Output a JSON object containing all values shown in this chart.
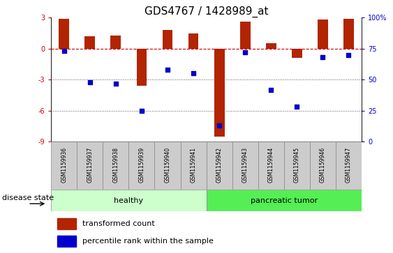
{
  "title": "GDS4767 / 1428989_at",
  "samples": [
    "GSM1159936",
    "GSM1159937",
    "GSM1159938",
    "GSM1159939",
    "GSM1159940",
    "GSM1159941",
    "GSM1159942",
    "GSM1159943",
    "GSM1159944",
    "GSM1159945",
    "GSM1159946",
    "GSM1159947"
  ],
  "transformed_count": [
    2.9,
    1.2,
    1.3,
    -3.6,
    1.8,
    1.5,
    -8.5,
    2.6,
    0.5,
    -0.9,
    2.8,
    2.9
  ],
  "percentile_rank": [
    73,
    48,
    47,
    25,
    58,
    55,
    13,
    72,
    42,
    28,
    68,
    70
  ],
  "ylim": [
    -9,
    3
  ],
  "yticks_left": [
    -9,
    -6,
    -3,
    0,
    3
  ],
  "yticks_right": [
    0,
    25,
    50,
    75,
    100
  ],
  "bar_color": "#b32400",
  "dot_color": "#0000cc",
  "hline_color": "#cc0000",
  "dotted_line_color": "#555555",
  "bg_color": "#ffffff",
  "healthy_color": "#ccffcc",
  "tumor_color": "#55ee55",
  "bar_width": 0.4,
  "dot_size": 25,
  "group_label_healthy": "healthy",
  "group_label_tumor": "pancreatic tumor",
  "disease_state_label": "disease state",
  "legend_entries": [
    "transformed count",
    "percentile rank within the sample"
  ],
  "title_fontsize": 11,
  "tick_fontsize": 7,
  "label_fontsize": 8,
  "legend_fontsize": 8,
  "sample_fontsize": 5.5
}
